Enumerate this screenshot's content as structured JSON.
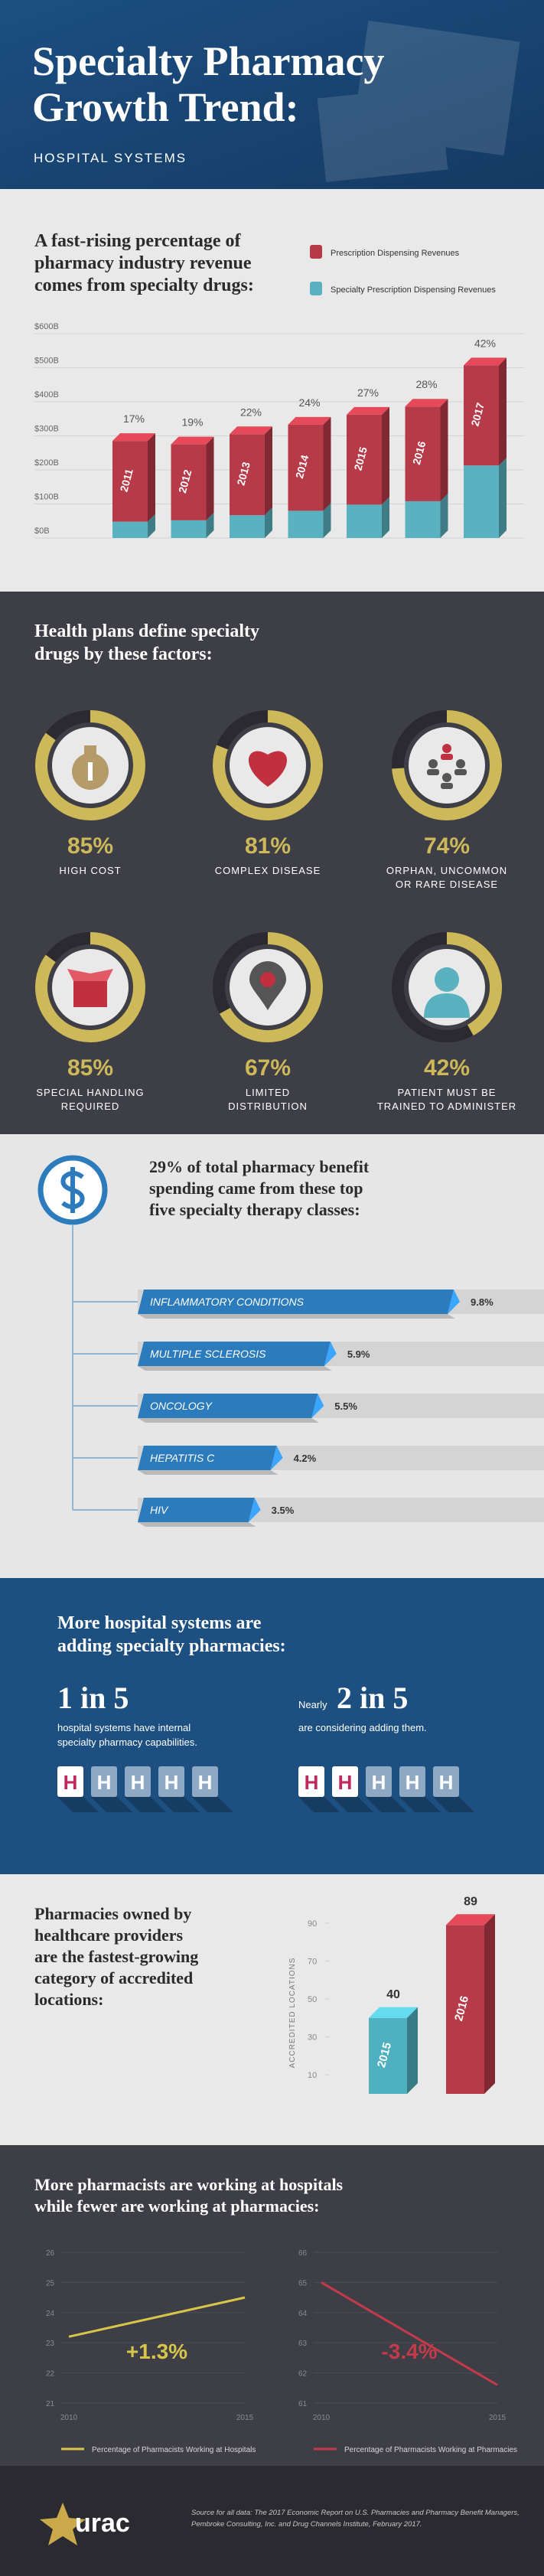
{
  "header": {
    "title_lines": [
      "Specialty Pharmacy",
      "Growth Trend:"
    ],
    "subtitle": "HOSPITAL SYSTEMS"
  },
  "chart_data": [
    {
      "type": "stackedbar",
      "title_lines": [
        "A fast-rising percentage of",
        "pharmacy industry revenue",
        "comes from specialty drugs:"
      ],
      "categories": [
        "2011",
        "2012",
        "2013",
        "2014",
        "2015",
        "2016",
        "2017"
      ],
      "series": [
        {
          "name": "Prescription Dispensing Revenues",
          "color": "#b73a48",
          "values": [
            237,
            223,
            238,
            253,
            264,
            278,
            294
          ]
        },
        {
          "name": "Specialty Prescription Dispensing Revenues",
          "color": "#5ab2c0",
          "values": [
            48,
            52,
            67,
            80,
            98,
            108,
            213
          ]
        }
      ],
      "share_labels": [
        "17%",
        "19%",
        "22%",
        "24%",
        "27%",
        "28%",
        "42%"
      ],
      "ylim": [
        0,
        600
      ],
      "yticks": [
        {
          "value": 0,
          "label": "$0B"
        },
        {
          "value": 100,
          "label": "$100B"
        },
        {
          "value": 200,
          "label": "$200B"
        },
        {
          "value": 300,
          "label": "$300B"
        },
        {
          "value": 400,
          "label": "$400B"
        },
        {
          "value": 500,
          "label": "$500B"
        },
        {
          "value": 600,
          "label": "$600B"
        }
      ],
      "grid": true
    },
    {
      "type": "hbar",
      "title_lines": [
        "29% of total pharmacy benefit",
        "spending came from these top",
        "five specialty therapy classes:"
      ],
      "categories": [
        "INFLAMMATORY CONDITIONS",
        "MULTIPLE SCLEROSIS",
        "ONCOLOGY",
        "HEPATITIS C",
        "HIV"
      ],
      "values": [
        9.8,
        5.9,
        5.5,
        4.2,
        3.5
      ],
      "value_labels": [
        "9.8%",
        "5.9%",
        "5.5%",
        "4.2%",
        "3.5%"
      ],
      "color": "#2b7bbd"
    },
    {
      "type": "bar",
      "title_lines": [
        "Pharmacies owned by",
        "healthcare providers",
        "are the fastest-growing",
        "category of accredited",
        "locations:"
      ],
      "y_label": "ACCREDITED LOCATIONS",
      "categories": [
        "2015",
        "2016"
      ],
      "values": [
        40,
        89
      ],
      "colors": [
        "#4fb0c0",
        "#b73a48"
      ],
      "ylim": [
        0,
        100
      ],
      "yticks": [
        10,
        30,
        50,
        70,
        90
      ]
    },
    {
      "type": "line",
      "x": [
        2010,
        2015
      ],
      "xlim": [
        2010,
        2015
      ],
      "xticks": [
        2010,
        2015
      ],
      "series": [
        {
          "name": "Percentage of Pharmacists Working at Hospitals",
          "color": "#d8c64a",
          "values": [
            23.2,
            24.5
          ]
        }
      ],
      "change_label": "+1.3%",
      "ylim": [
        21,
        26
      ],
      "yticks": [
        21,
        22,
        23,
        24,
        25,
        26
      ],
      "grid": true
    },
    {
      "type": "line",
      "x": [
        2010,
        2015
      ],
      "xlim": [
        2010,
        2015
      ],
      "xticks": [
        2010,
        2015
      ],
      "series": [
        {
          "name": "Percentage of Pharmacists Working at Pharmacies",
          "color": "#c33b4b",
          "values": [
            65,
            61.6
          ]
        }
      ],
      "change_label": "-3.4%",
      "ylim": [
        61,
        66
      ],
      "yticks": [
        61,
        62,
        63,
        64,
        65,
        66
      ],
      "grid": true
    }
  ],
  "factors": {
    "title_lines": [
      "Health plans define specialty",
      "drugs by these factors:"
    ],
    "values": [
      85,
      81,
      74,
      85,
      67,
      42
    ],
    "value_labels": [
      "85%",
      "81%",
      "74%",
      "85%",
      "67%",
      "42%"
    ],
    "label_lines": [
      [
        "HIGH COST"
      ],
      [
        "COMPLEX DISEASE"
      ],
      [
        "ORPHAN, UNCOMMON",
        "OR RARE DISEASE"
      ],
      [
        "SPECIAL HANDLING",
        "REQUIRED"
      ],
      [
        "LIMITED",
        "DISTRIBUTION"
      ],
      [
        "PATIENT MUST BE",
        "TRAINED TO ADMINISTER"
      ]
    ],
    "color": "#cdb85a"
  },
  "hospital_systems": {
    "title_lines": [
      "More hospital systems are",
      "adding specialty pharmacies:"
    ],
    "icon_letter": "H",
    "stats": [
      {
        "ratio": "1 in 5",
        "text_lines": [
          "hospital systems have internal",
          "specialty pharmacy capabilities."
        ],
        "count": 1,
        "total": 5
      },
      {
        "prefix": "Nearly",
        "ratio": "2 in 5",
        "text_lines": [
          "are considering adding them."
        ],
        "count": 2,
        "total": 5
      }
    ]
  },
  "pharmacists": {
    "title_lines": [
      "More pharmacists are working at hospitals",
      "while fewer are working at pharmacies:"
    ]
  },
  "footer": {
    "logo": "urac",
    "source_lines": [
      "Source for all data: The 2017 Economic Report on U.S. Pharmacies and Pharmacy Benefit Managers,",
      "Pembroke Consulting, Inc. and Drug Channels Institute, February 2017."
    ]
  }
}
